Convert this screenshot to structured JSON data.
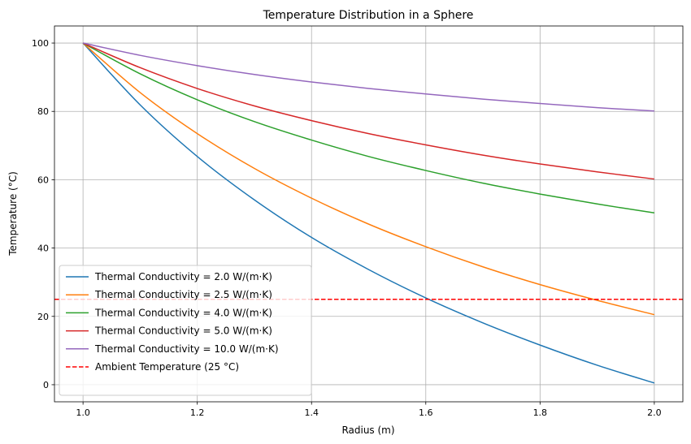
{
  "chart_data": {
    "type": "line",
    "title": "Temperature Distribution in a Sphere",
    "xlabel": "Radius (m)",
    "ylabel": "Temperature (°C)",
    "xlim": [
      0.95,
      2.05
    ],
    "ylim": [
      -5,
      105
    ],
    "xticks": [
      1.0,
      1.2,
      1.4,
      1.6,
      1.8,
      2.0
    ],
    "xtick_labels": [
      "1.0",
      "1.2",
      "1.4",
      "1.6",
      "1.8",
      "2.0"
    ],
    "yticks": [
      0,
      20,
      40,
      60,
      80,
      100
    ],
    "ytick_labels": [
      "0",
      "20",
      "40",
      "60",
      "80",
      "100"
    ],
    "grid": true,
    "legend_placement": "lower-left",
    "x": [
      1.0,
      1.1,
      1.2,
      1.3,
      1.4,
      1.5,
      1.6,
      1.7,
      1.8,
      1.9,
      2.0
    ],
    "series": [
      {
        "name": "Thermal Conductivity = 2.0 W/(m·K)",
        "color": "#1f77b4",
        "values": [
          100,
          81.9,
          66.8,
          54.1,
          43.1,
          33.7,
          25.4,
          18.1,
          11.6,
          5.7,
          0.5
        ]
      },
      {
        "name": "Thermal Conductivity = 2.5 W/(m·K)",
        "color": "#ff7f0e",
        "values": [
          100,
          85.5,
          73.5,
          63.3,
          54.6,
          47.0,
          40.4,
          34.5,
          29.3,
          24.7,
          20.5
        ]
      },
      {
        "name": "Thermal Conductivity = 4.0 W/(m·K)",
        "color": "#2ca02c",
        "values": [
          100,
          91.0,
          83.4,
          77.0,
          71.6,
          66.8,
          62.7,
          59.0,
          55.8,
          52.9,
          50.3
        ]
      },
      {
        "name": "Thermal Conductivity = 5.0 W/(m·K)",
        "color": "#d62728",
        "values": [
          100,
          92.8,
          86.7,
          81.6,
          77.3,
          73.5,
          70.2,
          67.2,
          64.6,
          62.3,
          60.2
        ]
      },
      {
        "name": "Thermal Conductivity = 10.0 W/(m·K)",
        "color": "#9467bd",
        "values": [
          100,
          96.4,
          93.4,
          90.8,
          88.6,
          86.7,
          85.1,
          83.6,
          82.3,
          81.1,
          80.1
        ]
      }
    ],
    "reference_lines": [
      {
        "name": "Ambient Temperature (25 °C)",
        "orientation": "horizontal",
        "y": 25,
        "color": "#ff0000",
        "style": "dashed"
      }
    ]
  }
}
